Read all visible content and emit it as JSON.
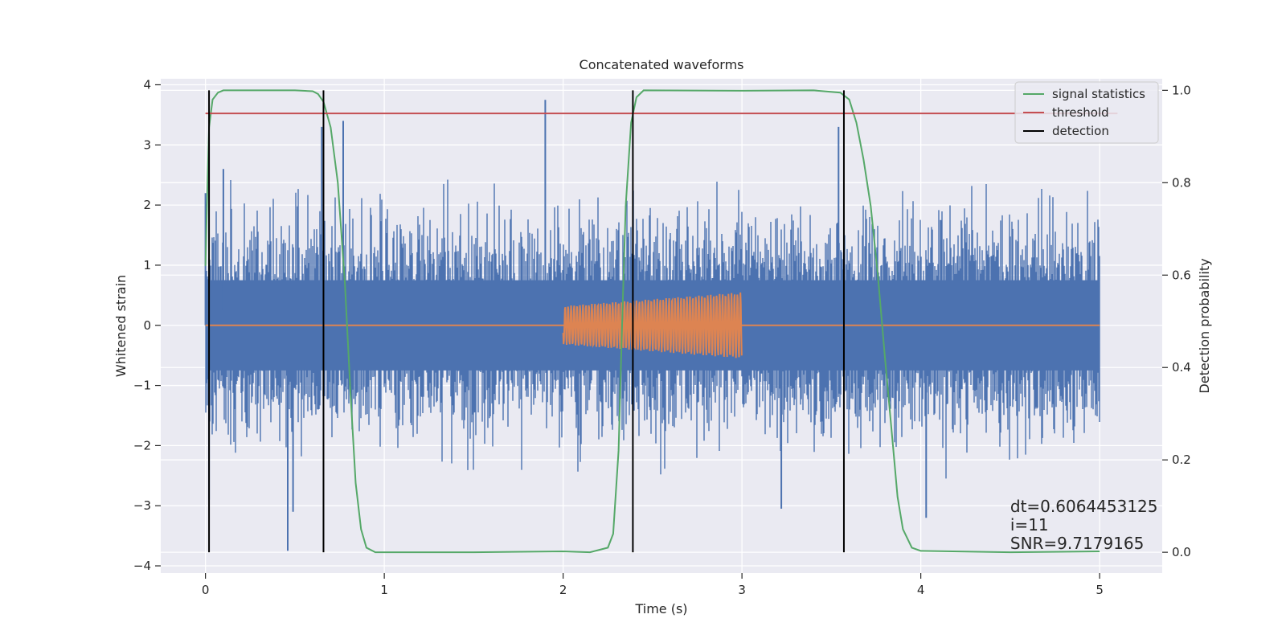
{
  "chart_data": {
    "type": "line",
    "title": "Concatenated waveforms",
    "xlabel": "Time (s)",
    "ylabel": "Whitened strain",
    "y2label": "Detection probability",
    "xlim": [
      -0.25,
      5.35
    ],
    "ylim": [
      -4.12,
      4.1
    ],
    "y2lim": [
      -0.045,
      1.025
    ],
    "xticks": [
      0,
      1,
      2,
      3,
      4,
      5
    ],
    "xtick_labels": [
      "0",
      "1",
      "2",
      "3",
      "4",
      "5"
    ],
    "yticks": [
      -4,
      -3,
      -2,
      -1,
      0,
      1,
      2,
      3,
      4
    ],
    "ytick_labels": [
      "−4",
      "−3",
      "−2",
      "−1",
      "0",
      "1",
      "2",
      "3",
      "4"
    ],
    "y2ticks": [
      0.0,
      0.2,
      0.4,
      0.6,
      0.8,
      1.0
    ],
    "y2tick_labels": [
      "0.0",
      "0.2",
      "0.4",
      "0.6",
      "0.8",
      "1.0"
    ],
    "grid": true,
    "legend_position": "top-right",
    "colors": {
      "plot_background": "#eaeaf2",
      "grid": "#ffffff",
      "whitened_strain": "#4c72b0",
      "injected_signal": "#dd8452",
      "signal_statistics": "#55a868",
      "threshold": "#c44e52",
      "detection": "#000000"
    },
    "series": [
      {
        "id": "whitened_strain",
        "axis": "left",
        "style": "noise",
        "x_range": [
          0,
          5
        ],
        "sigma": 0.75,
        "typical_min": -2.4,
        "typical_max": 2.2,
        "peaks": [
          {
            "x": 0.0,
            "y": 2.2
          },
          {
            "x": 0.02,
            "y": -2.9
          },
          {
            "x": 0.1,
            "y": 2.6
          },
          {
            "x": 0.65,
            "y": 3.3
          },
          {
            "x": 0.77,
            "y": 3.4
          },
          {
            "x": 0.46,
            "y": -3.75
          },
          {
            "x": 0.49,
            "y": -3.1
          },
          {
            "x": 1.9,
            "y": 3.75
          },
          {
            "x": 3.22,
            "y": -3.05
          },
          {
            "x": 3.54,
            "y": 3.3
          },
          {
            "x": 4.03,
            "y": -3.2
          }
        ]
      },
      {
        "id": "injected_signal",
        "axis": "left",
        "style": "chirp",
        "x_range": [
          0,
          5
        ],
        "burst_start": 2.0,
        "burst_end": 3.0,
        "amplitude_start": 0.32,
        "amplitude_end": 0.55
      },
      {
        "id": "signal_statistics",
        "name": "signal statistics",
        "axis": "right",
        "points": [
          [
            0.0,
            0.62
          ],
          [
            0.01,
            0.78
          ],
          [
            0.02,
            0.92
          ],
          [
            0.04,
            0.98
          ],
          [
            0.07,
            0.995
          ],
          [
            0.1,
            1.0
          ],
          [
            0.3,
            1.0
          ],
          [
            0.5,
            1.0
          ],
          [
            0.6,
            0.998
          ],
          [
            0.63,
            0.992
          ],
          [
            0.66,
            0.975
          ],
          [
            0.7,
            0.92
          ],
          [
            0.74,
            0.8
          ],
          [
            0.78,
            0.58
          ],
          [
            0.81,
            0.35
          ],
          [
            0.84,
            0.15
          ],
          [
            0.87,
            0.05
          ],
          [
            0.9,
            0.01
          ],
          [
            0.95,
            0.0
          ],
          [
            1.5,
            0.0
          ],
          [
            2.0,
            0.002
          ],
          [
            2.15,
            0.0
          ],
          [
            2.25,
            0.01
          ],
          [
            2.28,
            0.04
          ],
          [
            2.31,
            0.22
          ],
          [
            2.33,
            0.5
          ],
          [
            2.35,
            0.75
          ],
          [
            2.38,
            0.93
          ],
          [
            2.41,
            0.985
          ],
          [
            2.45,
            1.0
          ],
          [
            3.0,
            0.999
          ],
          [
            3.4,
            1.0
          ],
          [
            3.55,
            0.995
          ],
          [
            3.6,
            0.98
          ],
          [
            3.64,
            0.93
          ],
          [
            3.68,
            0.85
          ],
          [
            3.72,
            0.75
          ],
          [
            3.76,
            0.6
          ],
          [
            3.8,
            0.42
          ],
          [
            3.84,
            0.25
          ],
          [
            3.87,
            0.12
          ],
          [
            3.9,
            0.05
          ],
          [
            3.95,
            0.01
          ],
          [
            4.0,
            0.003
          ],
          [
            4.5,
            0.0
          ],
          [
            5.0,
            0.002
          ]
        ]
      },
      {
        "id": "threshold",
        "name": "threshold",
        "axis": "right",
        "points": [
          [
            0.0,
            0.95
          ],
          [
            5.1,
            0.95
          ]
        ]
      },
      {
        "id": "detection",
        "name": "detection",
        "axis": "right",
        "vlines": [
          0.02,
          0.66,
          2.39,
          3.57
        ],
        "ymin": 0.0,
        "ymax": 1.0
      }
    ],
    "annotation": {
      "lines": [
        "dt=0.6064453125",
        " i=11",
        "SNR=9.7179165"
      ],
      "x": 4.5,
      "y": -3.0
    }
  }
}
